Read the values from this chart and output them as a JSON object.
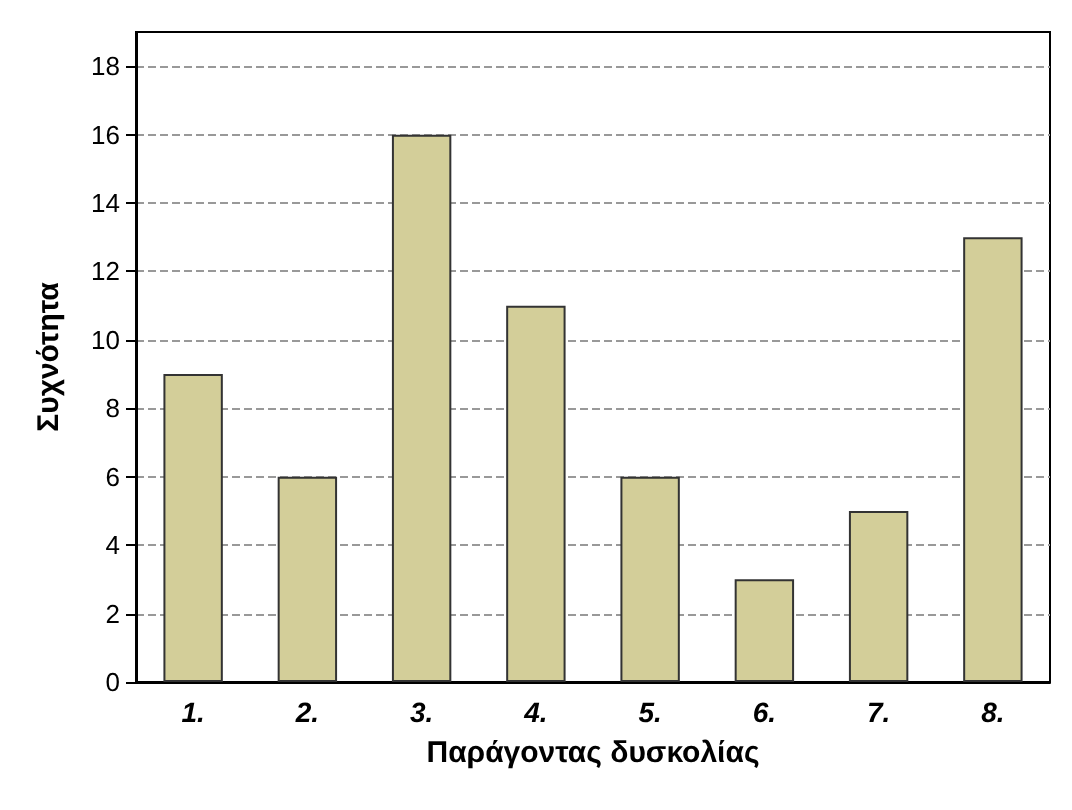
{
  "chart_data": {
    "type": "bar",
    "xlabel": "Παράγοντας δυσκολίας",
    "ylabel": "Συχνότητα",
    "categories": [
      "1.",
      "2.",
      "3.",
      "4.",
      "5.",
      "6.",
      "7.",
      "8."
    ],
    "values": [
      9,
      6,
      16,
      11,
      6,
      3,
      5,
      13
    ],
    "color": "#d3ce99",
    "ylim": [
      0,
      19
    ],
    "yticks": [
      0,
      2,
      4,
      6,
      8,
      10,
      12,
      14,
      16,
      18
    ],
    "grid": "y"
  }
}
